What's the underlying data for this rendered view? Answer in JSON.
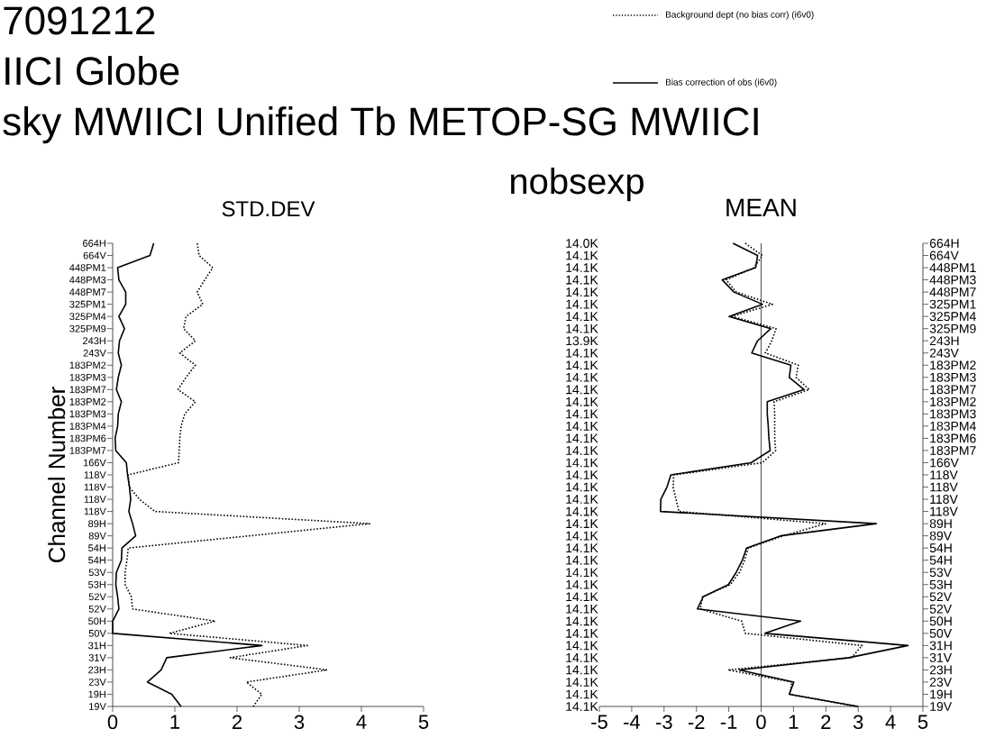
{
  "chart_data": [
    {
      "type": "line",
      "orientation": "horizontal",
      "title": "STD.DEV",
      "ylabel": "Channel Number",
      "annotations": [
        "7091212",
        "IICI  Globe",
        "sky MWIICI Unified Tb METOP-SG MWIICI"
      ],
      "categories": [
        "664H",
        "664V",
        "448PM1",
        "448PM3",
        "448PM7",
        "325PM1",
        "325PM4",
        "325PM9",
        "243H",
        "243V",
        "183PM2",
        "183PM3",
        "183PM7",
        "183PM2",
        "183PM3",
        "183PM4",
        "183PM6",
        "183PM7",
        "166V",
        "118V",
        "118V",
        "118V",
        "118V",
        "89H",
        "89V",
        "54H",
        "54H",
        "53V",
        "53H",
        "52V",
        "52V",
        "50H",
        "50V",
        "31H",
        "31V",
        "23H",
        "23V",
        "19H",
        "19V"
      ],
      "xlim": [
        0,
        5
      ],
      "xticks": [
        0,
        1,
        2,
        3,
        4,
        5
      ],
      "series": [
        {
          "color": "#000000",
          "line_style": "dotted",
          "values": [
            1.36,
            1.39,
            1.61,
            1.48,
            1.36,
            1.45,
            1.18,
            1.14,
            1.33,
            1.08,
            1.33,
            1.18,
            1.05,
            1.33,
            1.16,
            1.1,
            1.08,
            1.07,
            1.06,
            0.25,
            0.27,
            0.43,
            0.68,
            4.13,
            2.2,
            0.25,
            0.23,
            0.2,
            0.2,
            0.3,
            0.32,
            1.65,
            0.91,
            3.13,
            1.89,
            3.45,
            2.15,
            2.4,
            2.26
          ]
        },
        {
          "color": "#000000",
          "line_style": "solid",
          "values": [
            0.66,
            0.6,
            0.08,
            0.1,
            0.21,
            0.21,
            0.1,
            0.19,
            0.11,
            0.09,
            0.14,
            0.09,
            0.06,
            0.14,
            0.09,
            0.08,
            0.04,
            0.05,
            0.22,
            0.24,
            0.27,
            0.29,
            0.26,
            0.32,
            0.37,
            0.15,
            0.14,
            0.06,
            0.05,
            0.08,
            0.1,
            0.0,
            0.0,
            2.4,
            0.87,
            0.78,
            0.56,
            0.95,
            1.1
          ]
        }
      ]
    },
    {
      "type": "line",
      "orientation": "horizontal",
      "title": "MEAN",
      "y2label": "nobsexp",
      "legend": "top",
      "categories": [
        "664H",
        "664V",
        "448PM1",
        "448PM3",
        "448PM7",
        "325PM1",
        "325PM4",
        "325PM9",
        "243H",
        "243V",
        "183PM2",
        "183PM3",
        "183PM7",
        "183PM2",
        "183PM3",
        "183PM4",
        "183PM6",
        "183PM7",
        "166V",
        "118V",
        "118V",
        "118V",
        "118V",
        "89H",
        "89V",
        "54H",
        "54H",
        "53V",
        "53H",
        "52V",
        "52V",
        "50H",
        "50V",
        "31H",
        "31V",
        "23H",
        "23V",
        "19H",
        "19V"
      ],
      "y2_categories": [
        "14.0K",
        "14.1K",
        "14.1K",
        "14.1K",
        "14.1K",
        "14.1K",
        "14.1K",
        "14.1K",
        "13.9K",
        "14.1K",
        "14.1K",
        "14.1K",
        "14.1K",
        "14.1K",
        "14.1K",
        "14.1K",
        "14.1K",
        "14.1K",
        "14.1K",
        "14.1K",
        "14.1K",
        "14.1K",
        "14.1K",
        "14.1K",
        "14.1K",
        "14.1K",
        "14.1K",
        "14.1K",
        "14.1K",
        "14.1K",
        "14.1K",
        "14.1K",
        "14.1K",
        "14.1K",
        "14.1K",
        "14.1K",
        "14.1K",
        "14.1K",
        "14.1K"
      ],
      "xlim": [
        -5,
        5
      ],
      "xticks": [
        -5,
        -4,
        -3,
        -2,
        -1,
        0,
        1,
        2,
        3,
        4,
        5
      ],
      "ref_lines": [
        {
          "axis": "x",
          "value": 0,
          "color": "#000000"
        }
      ],
      "series": [
        {
          "name": "Background dept (no bias corr) (i6v0)",
          "color": "#000000",
          "line_style": "dotted",
          "values": [
            -0.49,
            0.04,
            -0.22,
            -1.08,
            -0.77,
            0.35,
            -0.9,
            0.46,
            0.33,
            0.13,
            1.15,
            1.08,
            1.49,
            0.4,
            0.42,
            0.42,
            0.42,
            0.45,
            0.04,
            -2.7,
            -2.72,
            -2.63,
            -2.54,
            1.99,
            0.69,
            -0.4,
            -0.51,
            -0.67,
            -0.95,
            -1.81,
            -1.88,
            -0.6,
            -0.49,
            3.12,
            2.79,
            -1.02,
            0.95,
            0.89,
            2.94
          ]
        },
        {
          "name": "Bias correction of obs (i6v0)",
          "color": "#000000",
          "line_style": "solid",
          "values": [
            -0.87,
            -0.11,
            -0.17,
            -1.2,
            -0.84,
            0.04,
            -0.99,
            0.3,
            -0.11,
            -0.29,
            0.92,
            0.87,
            1.33,
            0.19,
            0.19,
            0.22,
            0.24,
            0.28,
            -0.31,
            -2.79,
            -2.91,
            -3.1,
            -3.11,
            3.56,
            0.6,
            -0.45,
            -0.58,
            -0.77,
            -1.01,
            -1.79,
            -1.97,
            1.22,
            0.12,
            4.54,
            2.71,
            -0.67,
            1.01,
            0.87,
            3.0
          ]
        }
      ]
    }
  ]
}
